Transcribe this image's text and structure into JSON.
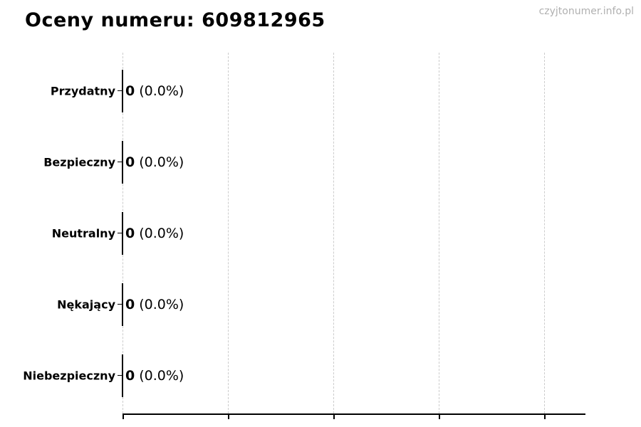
{
  "header": {
    "title": "Oceny numeru: 609812965",
    "watermark": "czyjtonumer.info.pl"
  },
  "chart_data": {
    "type": "bar",
    "orientation": "horizontal",
    "title": "Oceny numeru: 609812965",
    "categories": [
      "Przydatny",
      "Bezpieczny",
      "Neutralny",
      "Nękający",
      "Niebezpieczny"
    ],
    "values": [
      0,
      0,
      0,
      0,
      0
    ],
    "percent_labels": [
      "(0.0%)",
      "(0.0%)",
      "(0.0%)",
      "(0.0%)",
      "(0.0%)"
    ],
    "annotations": [
      "0 (0.0%)",
      "0 (0.0%)",
      "0 (0.0%)",
      "0 (0.0%)",
      "0 (0.0%)"
    ],
    "xlabel": "",
    "ylabel": "",
    "xlim": [
      0,
      1.1
    ],
    "x_gridline_count": 5,
    "grid": "vertical-dashed",
    "legend": "none",
    "colors": {
      "bar_outline": "#000000",
      "gridline": "#cccccc",
      "axis": "#000000",
      "text": "#000000",
      "watermark": "#b0b0b0",
      "background": "#ffffff"
    }
  }
}
